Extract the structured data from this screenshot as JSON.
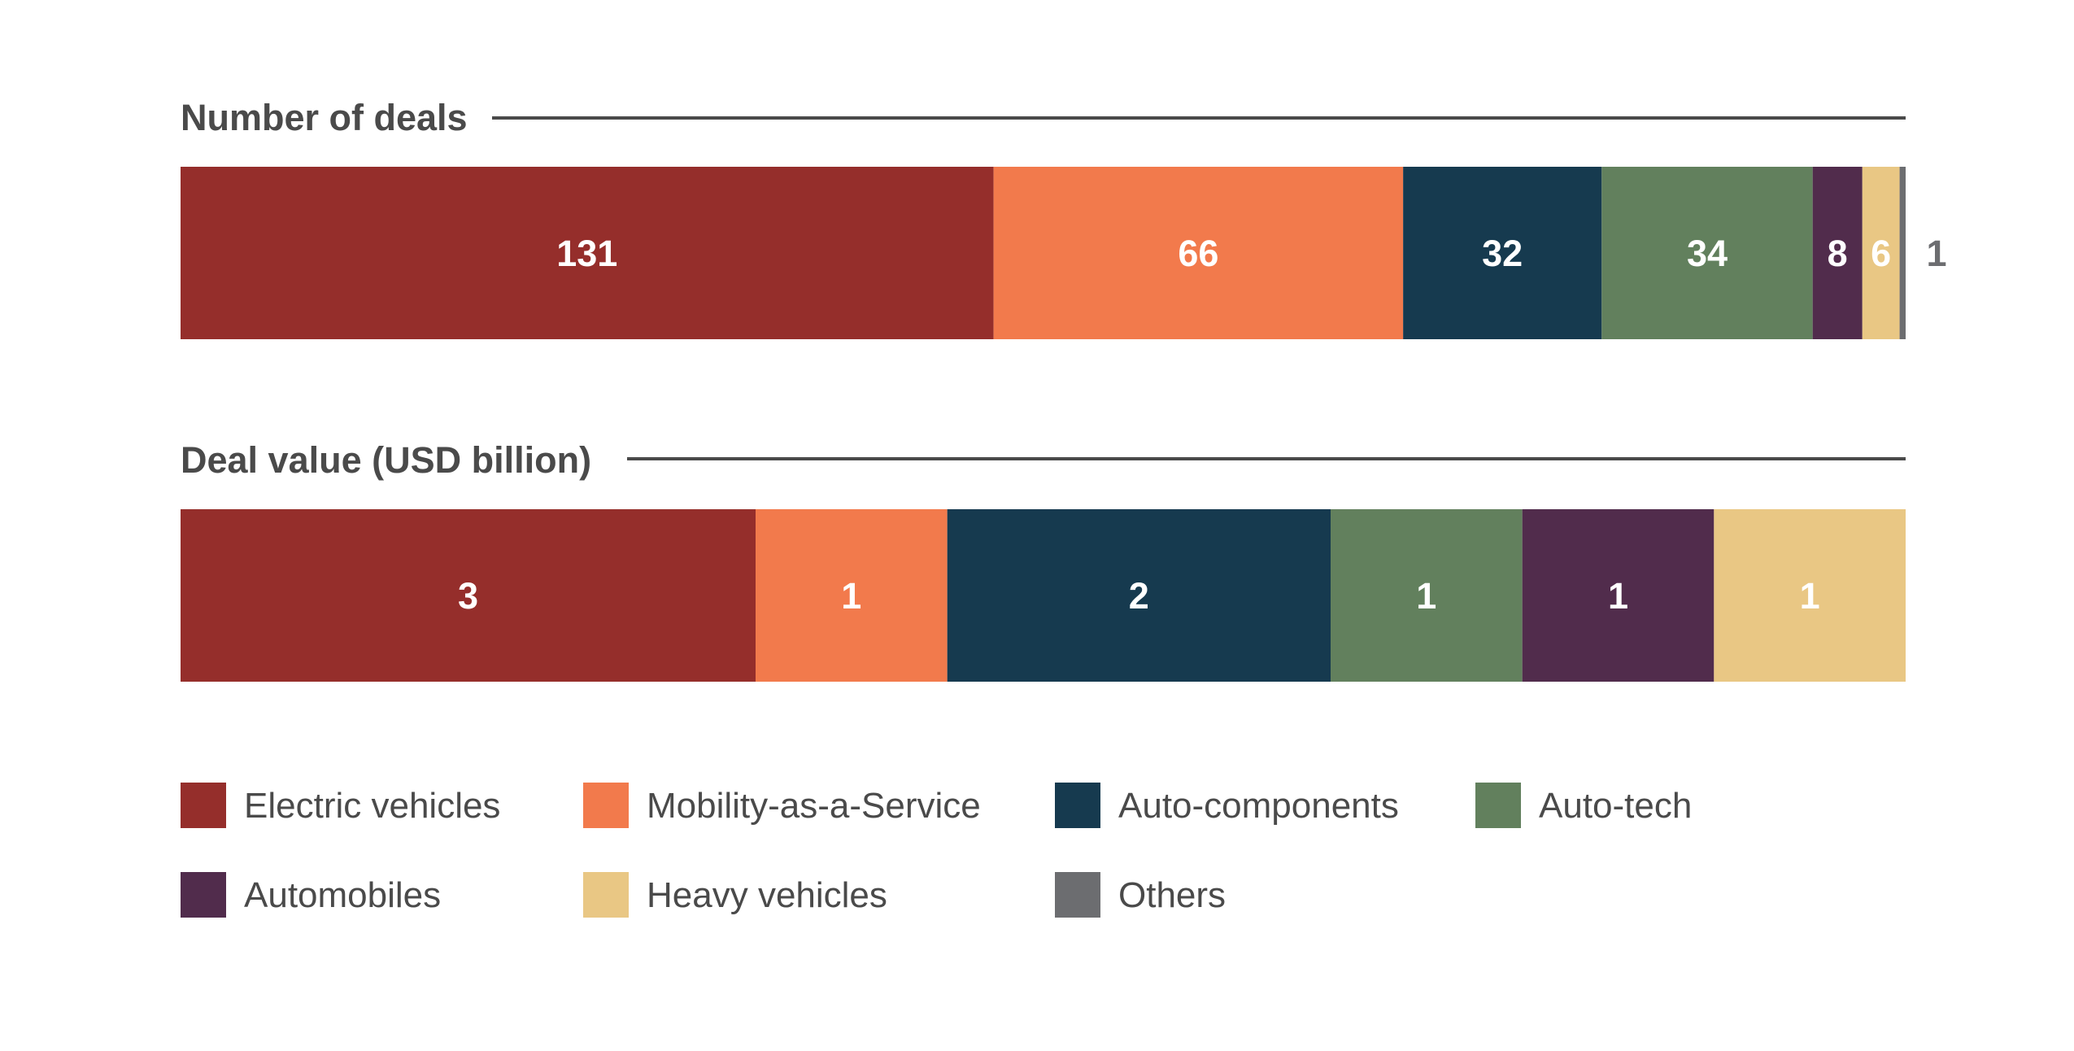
{
  "chart_data": {
    "type": "bar",
    "orientation": "horizontal",
    "stacked": true,
    "normalized": true,
    "grid": false,
    "legend_position": "bottom",
    "categories": [
      "Number of deals",
      "Deal value (USD billion)"
    ],
    "series": [
      {
        "name": "Electric vehicles",
        "color": "#952E2B",
        "values": [
          131,
          3
        ]
      },
      {
        "name": "Mobility-as-a-Service",
        "color": "#F27A4C",
        "values": [
          66,
          1
        ]
      },
      {
        "name": "Auto-components",
        "color": "#163A4F",
        "values": [
          32,
          2
        ]
      },
      {
        "name": "Auto-tech",
        "color": "#62805D",
        "values": [
          34,
          1
        ]
      },
      {
        "name": "Automobiles",
        "color": "#512C4C",
        "values": [
          8,
          1
        ]
      },
      {
        "name": "Heavy vehicles",
        "color": "#E9C784",
        "values": [
          6,
          1
        ]
      },
      {
        "name": "Others",
        "color": "#6C6D70",
        "values": [
          1,
          null
        ]
      }
    ],
    "panels": [
      {
        "title": "Number of deals",
        "segment_shares": [
          0.4713,
          0.2374,
          0.1151,
          0.1223,
          0.0288,
          0.0216,
          0.0035
        ],
        "labels": [
          "131",
          "66",
          "32",
          "34",
          "8",
          "6",
          "1"
        ]
      },
      {
        "title": "Deal value (USD billion)",
        "segment_shares": [
          0.3333,
          0.1111,
          0.2222,
          0.1111,
          0.1111,
          0.1111,
          0
        ],
        "labels": [
          "3",
          "1",
          "2",
          "1",
          "1",
          "1",
          ""
        ]
      }
    ]
  }
}
